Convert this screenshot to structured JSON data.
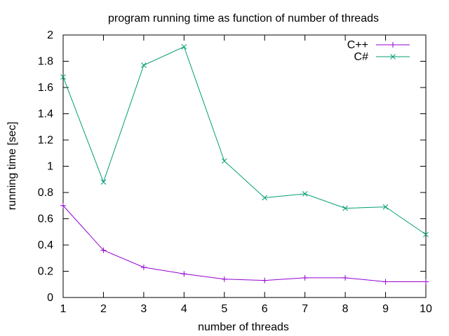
{
  "chart_data": {
    "type": "line",
    "title": "program running time as function of number of threads",
    "xlabel": "number of threads",
    "ylabel": "running time [sec]",
    "x": [
      1,
      2,
      3,
      4,
      5,
      6,
      7,
      8,
      9,
      10
    ],
    "xlim": [
      1,
      10
    ],
    "ylim": [
      0,
      2
    ],
    "x_ticks": [
      "1",
      "2",
      "3",
      "4",
      "5",
      "6",
      "7",
      "8",
      "9",
      "10"
    ],
    "y_ticks": [
      "0",
      "0.2",
      "0.4",
      "0.6",
      "0.8",
      "1",
      "1.2",
      "1.4",
      "1.6",
      "1.8",
      "2"
    ],
    "grid": false,
    "legend_position": "top-right",
    "series": [
      {
        "name": "C++",
        "color": "#9400d3",
        "marker": "plus",
        "values": [
          0.7,
          0.36,
          0.23,
          0.18,
          0.14,
          0.13,
          0.15,
          0.15,
          0.12,
          0.12
        ]
      },
      {
        "name": "C#",
        "color": "#009e73",
        "marker": "cross",
        "values": [
          1.68,
          0.88,
          1.77,
          1.91,
          1.04,
          0.76,
          0.79,
          0.68,
          0.69,
          0.48
        ]
      }
    ]
  }
}
